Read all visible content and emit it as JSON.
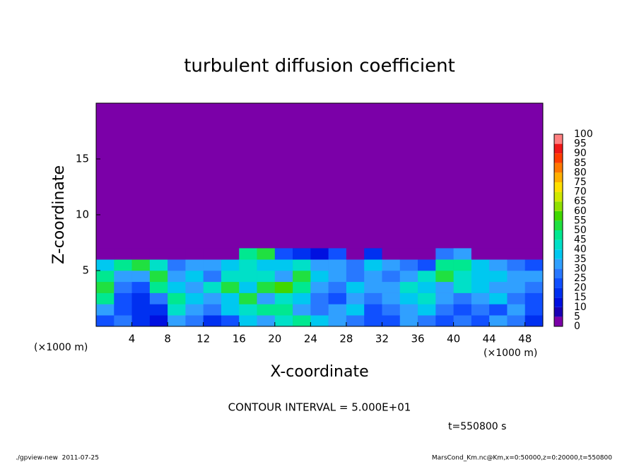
{
  "chart_data": {
    "type": "heatmap",
    "title": "turbulent diffusion coefficient",
    "x_label": "X-coordinate",
    "y_label": "Z-coordinate",
    "x_unit": "(×1000 m)",
    "y_unit": "(×1000 m)",
    "xlim": [
      0,
      50
    ],
    "ylim": [
      0,
      20
    ],
    "xticks": [
      4,
      8,
      12,
      16,
      20,
      24,
      28,
      32,
      36,
      40,
      44,
      48
    ],
    "yticks": [
      5,
      10,
      15
    ],
    "x_edges": [
      0,
      2,
      4,
      6,
      8,
      10,
      12,
      14,
      16,
      18,
      20,
      22,
      24,
      26,
      28,
      30,
      32,
      34,
      36,
      38,
      40,
      42,
      44,
      46,
      48,
      50
    ],
    "z_edges": [
      0,
      1,
      2,
      3,
      4,
      5,
      6,
      7
    ],
    "values": [
      [
        20,
        25,
        15,
        10,
        30,
        25,
        15,
        20,
        35,
        30,
        40,
        45,
        35,
        30,
        25,
        20,
        20,
        30,
        25,
        20,
        25,
        20,
        30,
        25,
        15
      ],
      [
        30,
        20,
        15,
        15,
        40,
        30,
        25,
        35,
        40,
        45,
        45,
        30,
        25,
        30,
        35,
        20,
        25,
        30,
        35,
        25,
        20,
        25,
        20,
        30,
        20
      ],
      [
        45,
        20,
        15,
        25,
        45,
        35,
        30,
        35,
        50,
        30,
        40,
        35,
        25,
        20,
        30,
        25,
        30,
        35,
        40,
        30,
        25,
        30,
        35,
        25,
        20
      ],
      [
        50,
        25,
        20,
        45,
        35,
        30,
        40,
        50,
        35,
        50,
        55,
        45,
        30,
        25,
        35,
        30,
        30,
        40,
        35,
        30,
        40,
        35,
        30,
        30,
        25
      ],
      [
        45,
        30,
        30,
        50,
        30,
        35,
        25,
        40,
        40,
        40,
        30,
        50,
        35,
        30,
        25,
        30,
        25,
        30,
        40,
        50,
        40,
        35,
        35,
        30,
        30
      ],
      [
        35,
        45,
        50,
        40,
        25,
        30,
        30,
        35,
        40,
        35,
        35,
        40,
        30,
        30,
        25,
        35,
        30,
        25,
        20,
        45,
        45,
        35,
        30,
        25,
        20
      ],
      [
        0,
        0,
        0,
        0,
        0,
        0,
        0,
        0,
        45,
        50,
        20,
        15,
        10,
        20,
        0,
        15,
        0,
        0,
        0,
        25,
        30,
        0,
        0,
        0,
        0
      ]
    ],
    "levels": [
      0,
      5,
      10,
      15,
      20,
      25,
      30,
      35,
      40,
      45,
      50,
      55,
      60,
      65,
      70,
      75,
      80,
      85,
      90,
      95,
      100
    ],
    "colors": [
      "#7b00a8",
      "#1a00b4",
      "#0010e0",
      "#0030f0",
      "#1050ff",
      "#2878ff",
      "#30a0ff",
      "#00c8f0",
      "#00e0c8",
      "#00e890",
      "#20e040",
      "#40d800",
      "#90e000",
      "#d0e800",
      "#ffe000",
      "#ffb000",
      "#ff7800",
      "#ff3c00",
      "#f01818",
      "#ff8080"
    ],
    "contour_interval": "CONTOUR INTERVAL = 5.000E+01",
    "time_label": "t=550800 s",
    "footer_left": "./gpview-new  2011-07-25",
    "footer_right": "MarsCond_Km.nc@Km,x=0:50000,z=0:20000,t=550800"
  }
}
